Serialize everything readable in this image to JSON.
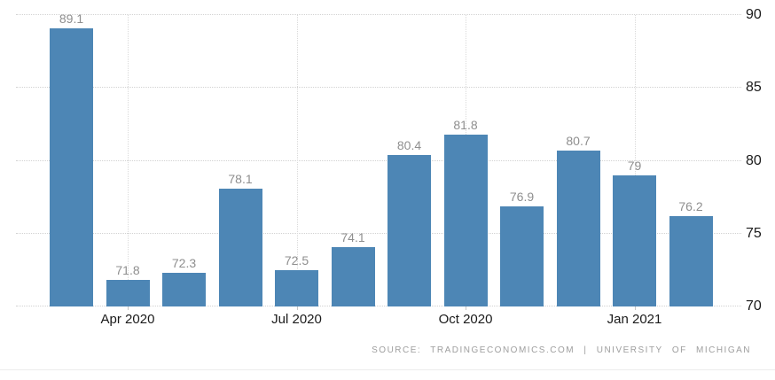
{
  "chart_data": {
    "type": "bar",
    "title": "",
    "values": [
      89.1,
      71.8,
      72.3,
      78.1,
      72.5,
      74.1,
      80.4,
      81.8,
      76.9,
      80.7,
      79,
      76.2
    ],
    "value_labels": [
      "89.1",
      "71.8",
      "72.3",
      "78.1",
      "72.5",
      "74.1",
      "80.4",
      "81.8",
      "76.9",
      "80.7",
      "79",
      "76.2"
    ],
    "x_ticks": [
      {
        "label": "Apr 2020",
        "bar_index": 1
      },
      {
        "label": "Jul 2020",
        "bar_index": 4
      },
      {
        "label": "Oct 2020",
        "bar_index": 7
      },
      {
        "label": "Jan 2021",
        "bar_index": 10
      }
    ],
    "y_ticks": [
      70,
      75,
      80,
      85,
      90
    ],
    "ylim": [
      70,
      90
    ],
    "grid": "dotted",
    "legend": "none",
    "bar_color": "#4d86b5"
  },
  "footer": {
    "source_text": "SOURCE: TRADINGECONOMICS.COM | UNIVERSITY OF MICHIGAN"
  },
  "colors": {
    "bar": "#4d86b5",
    "value_label": "#8f8f8f",
    "axis_label": "#1a1a1a",
    "gridline": "#d2d2d2",
    "footer_text": "#9e9e9e",
    "divider": "#ededed",
    "background": "#ffffff"
  }
}
